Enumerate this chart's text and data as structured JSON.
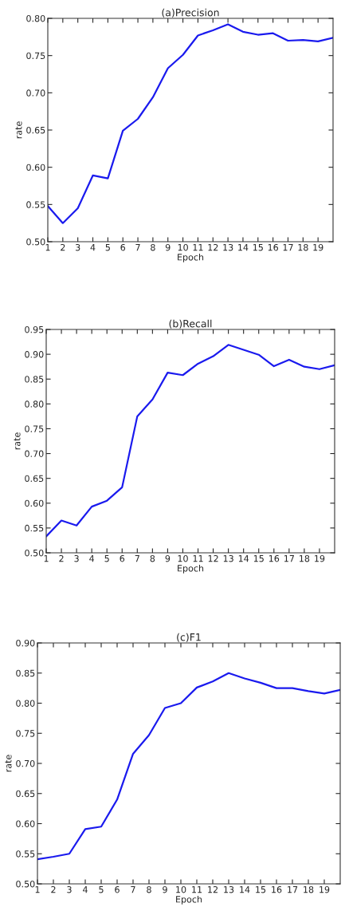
{
  "chart_data": [
    {
      "type": "line",
      "title": "(a)Precision",
      "xlabel": "Epoch",
      "ylabel": "rate",
      "x": [
        1,
        2,
        3,
        4,
        5,
        6,
        7,
        8,
        9,
        10,
        11,
        12,
        13,
        14,
        15,
        16,
        17,
        18,
        19,
        20
      ],
      "series": [
        {
          "color": "#1a1aee",
          "values": [
            0.548,
            0.525,
            0.545,
            0.589,
            0.585,
            0.649,
            0.665,
            0.694,
            0.733,
            0.751,
            0.777,
            0.784,
            0.792,
            0.782,
            0.778,
            0.78,
            0.77,
            0.771,
            0.769,
            0.774
          ]
        }
      ],
      "xlim": [
        1,
        20
      ],
      "xticks": [
        1,
        2,
        3,
        4,
        5,
        6,
        7,
        8,
        9,
        10,
        11,
        12,
        13,
        14,
        15,
        16,
        17,
        18,
        19
      ],
      "ylim": [
        0.5,
        0.8
      ],
      "yticks": [
        {
          "value": 0.5,
          "label": "0.50"
        },
        {
          "value": 0.55,
          "label": "0.55"
        },
        {
          "value": 0.6,
          "label": "0.60"
        },
        {
          "value": 0.65,
          "label": "0.65"
        },
        {
          "value": 0.7,
          "label": "0.70"
        },
        {
          "value": 0.75,
          "label": "0.75"
        },
        {
          "value": 0.8,
          "label": "0.80"
        }
      ],
      "grid": false,
      "legend": false
    },
    {
      "type": "line",
      "title": "(b)Recall",
      "xlabel": "Epoch",
      "ylabel": "rate",
      "x": [
        1,
        2,
        3,
        4,
        5,
        6,
        7,
        8,
        9,
        10,
        11,
        12,
        13,
        14,
        15,
        16,
        17,
        18,
        19,
        20
      ],
      "series": [
        {
          "color": "#1a1aee",
          "values": [
            0.533,
            0.565,
            0.555,
            0.593,
            0.605,
            0.632,
            0.775,
            0.809,
            0.863,
            0.858,
            0.881,
            0.896,
            0.919,
            0.909,
            0.899,
            0.876,
            0.889,
            0.875,
            0.87,
            0.878
          ]
        }
      ],
      "xlim": [
        1,
        20
      ],
      "xticks": [
        1,
        2,
        3,
        4,
        5,
        6,
        7,
        8,
        9,
        10,
        11,
        12,
        13,
        14,
        15,
        16,
        17,
        18,
        19
      ],
      "ylim": [
        0.5,
        0.95
      ],
      "yticks": [
        {
          "value": 0.5,
          "label": "0.50"
        },
        {
          "value": 0.55,
          "label": "0.55"
        },
        {
          "value": 0.6,
          "label": "0.60"
        },
        {
          "value": 0.65,
          "label": "0.65"
        },
        {
          "value": 0.7,
          "label": "0.70"
        },
        {
          "value": 0.75,
          "label": "0.75"
        },
        {
          "value": 0.8,
          "label": "0.80"
        },
        {
          "value": 0.85,
          "label": "0.85"
        },
        {
          "value": 0.9,
          "label": "0.90"
        },
        {
          "value": 0.95,
          "label": "0.95"
        }
      ],
      "grid": false,
      "legend": false
    },
    {
      "type": "line",
      "title": "(c)F1",
      "xlabel": "Epoch",
      "ylabel": "rate",
      "x": [
        1,
        2,
        3,
        4,
        5,
        6,
        7,
        8,
        9,
        10,
        11,
        12,
        13,
        14,
        15,
        16,
        17,
        18,
        19,
        20
      ],
      "series": [
        {
          "color": "#1a1aee",
          "values": [
            0.541,
            0.545,
            0.55,
            0.591,
            0.595,
            0.64,
            0.716,
            0.747,
            0.792,
            0.8,
            0.826,
            0.836,
            0.85,
            0.841,
            0.834,
            0.825,
            0.825,
            0.82,
            0.816,
            0.822
          ]
        }
      ],
      "xlim": [
        1,
        20
      ],
      "xticks": [
        1,
        2,
        3,
        4,
        5,
        6,
        7,
        8,
        9,
        10,
        11,
        12,
        13,
        14,
        15,
        16,
        17,
        18,
        19
      ],
      "ylim": [
        0.5,
        0.9
      ],
      "yticks": [
        {
          "value": 0.5,
          "label": "0.50"
        },
        {
          "value": 0.55,
          "label": "0.55"
        },
        {
          "value": 0.6,
          "label": "0.60"
        },
        {
          "value": 0.65,
          "label": "0.65"
        },
        {
          "value": 0.7,
          "label": "0.70"
        },
        {
          "value": 0.75,
          "label": "0.75"
        },
        {
          "value": 0.8,
          "label": "0.80"
        },
        {
          "value": 0.85,
          "label": "0.85"
        },
        {
          "value": 0.9,
          "label": "0.90"
        }
      ],
      "grid": false,
      "legend": false
    }
  ]
}
